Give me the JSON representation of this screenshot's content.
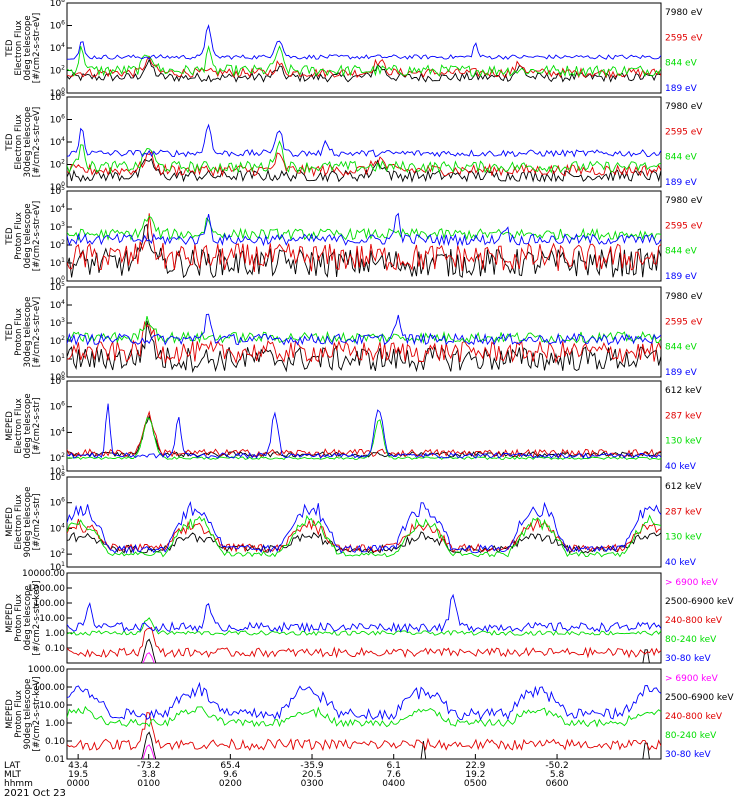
{
  "chart_data": [
    {
      "type": "line",
      "ylabel_lines": [
        "TED",
        "Electron Flux",
        "0deg telescope",
        "[#/cm2-s-str-eV]"
      ],
      "yscale": "log",
      "ylim_exp": [
        0,
        8
      ],
      "yticks": [
        {
          "exp": 0,
          "text": "10"
        },
        {
          "exp": 2,
          "text": "10"
        },
        {
          "exp": 4,
          "text": "10"
        },
        {
          "exp": 6,
          "text": "10"
        },
        {
          "exp": 8,
          "text": "10"
        }
      ],
      "series": [
        {
          "name": "7980 eV",
          "color": "#000000",
          "baseline": 1.4,
          "noise": 0.4,
          "spikes": [
            {
              "x": 1.1,
              "w": 0.09,
              "h": 1.2
            },
            {
              "x": 2.85,
              "w": 0.07,
              "h": 0.8
            },
            {
              "x": 4.2,
              "w": 0.1,
              "h": 1.0
            },
            {
              "x": 6.1,
              "w": 0.08,
              "h": 0.9
            }
          ]
        },
        {
          "name": "2595 eV",
          "color": "#e00000",
          "baseline": 1.8,
          "noise": 0.4,
          "spikes": [
            {
              "x": 1.1,
              "w": 0.09,
              "h": 1.1
            },
            {
              "x": 2.85,
              "w": 0.07,
              "h": 0.8
            },
            {
              "x": 4.2,
              "w": 0.1,
              "h": 1.0
            },
            {
              "x": 6.1,
              "w": 0.08,
              "h": 0.8
            }
          ]
        },
        {
          "name": "844 eV",
          "color": "#00dd00",
          "baseline": 2.0,
          "noise": 0.5,
          "spikes": [
            {
              "x": 0.2,
              "w": 0.05,
              "h": 2.0
            },
            {
              "x": 1.1,
              "w": 0.09,
              "h": 1.6
            },
            {
              "x": 1.9,
              "w": 0.04,
              "h": 2.2
            },
            {
              "x": 2.85,
              "w": 0.07,
              "h": 1.8
            }
          ]
        },
        {
          "name": "189 eV",
          "color": "#0000ff",
          "baseline": 3.2,
          "noise": 0.2,
          "spikes": [
            {
              "x": 0.2,
              "w": 0.04,
              "h": 1.4
            },
            {
              "x": 1.9,
              "w": 0.05,
              "h": 3.0
            },
            {
              "x": 2.85,
              "w": 0.07,
              "h": 1.6
            },
            {
              "x": 5.5,
              "w": 0.04,
              "h": 1.2
            }
          ]
        }
      ]
    },
    {
      "type": "line",
      "ylabel_lines": [
        "TED",
        "Electron Flux",
        "30deg telescope",
        "[#/cm2-s-str-eV]"
      ],
      "yscale": "log",
      "ylim_exp": [
        0,
        8
      ],
      "yticks": [
        {
          "exp": 0,
          "text": "10"
        },
        {
          "exp": 2,
          "text": "10"
        },
        {
          "exp": 4,
          "text": "10"
        },
        {
          "exp": 6,
          "text": "10"
        },
        {
          "exp": 8,
          "text": "10"
        }
      ],
      "series": [
        {
          "name": "7980 eV",
          "color": "#000000",
          "baseline": 1.0,
          "noise": 0.5,
          "spikes": [
            {
              "x": 1.1,
              "w": 0.09,
              "h": 1.5
            },
            {
              "x": 4.2,
              "w": 0.1,
              "h": 1.2
            }
          ]
        },
        {
          "name": "2595 eV",
          "color": "#e00000",
          "baseline": 1.5,
          "noise": 0.5,
          "spikes": [
            {
              "x": 1.1,
              "w": 0.09,
              "h": 1.4
            },
            {
              "x": 2.85,
              "w": 0.07,
              "h": 1.2
            },
            {
              "x": 4.2,
              "w": 0.1,
              "h": 1.0
            }
          ]
        },
        {
          "name": "844 eV",
          "color": "#00dd00",
          "baseline": 1.8,
          "noise": 0.5,
          "spikes": [
            {
              "x": 0.2,
              "w": 0.05,
              "h": 2.5
            },
            {
              "x": 1.1,
              "w": 0.08,
              "h": 1.8
            },
            {
              "x": 2.85,
              "w": 0.07,
              "h": 2.2
            }
          ]
        },
        {
          "name": "189 eV",
          "color": "#0000ff",
          "baseline": 3.0,
          "noise": 0.3,
          "spikes": [
            {
              "x": 0.2,
              "w": 0.04,
              "h": 2.5
            },
            {
              "x": 1.9,
              "w": 0.05,
              "h": 2.8
            },
            {
              "x": 2.85,
              "w": 0.07,
              "h": 2.0
            },
            {
              "x": 3.5,
              "w": 0.05,
              "h": 1.0
            }
          ]
        }
      ]
    },
    {
      "type": "line",
      "ylabel_lines": [
        "TED",
        "Proton Flux",
        "0deg telescope",
        "[#/cm2-s-str-eV]"
      ],
      "yscale": "log",
      "ylim_exp": [
        0,
        5
      ],
      "yticks": [
        {
          "exp": 0,
          "text": "10"
        },
        {
          "exp": 1,
          "text": "10"
        },
        {
          "exp": 2,
          "text": "10"
        },
        {
          "exp": 3,
          "text": "10"
        },
        {
          "exp": 4,
          "text": "10"
        },
        {
          "exp": 5,
          "text": "10"
        }
      ],
      "series": [
        {
          "name": "7980 eV",
          "color": "#000000",
          "baseline": 1.0,
          "noise": 0.8,
          "spikes": [
            {
              "x": 1.1,
              "w": 0.09,
              "h": 1.8
            }
          ]
        },
        {
          "name": "2595 eV",
          "color": "#e00000",
          "baseline": 1.3,
          "noise": 0.8,
          "spikes": [
            {
              "x": 1.1,
              "w": 0.09,
              "h": 1.7
            }
          ]
        },
        {
          "name": "844 eV",
          "color": "#00dd00",
          "baseline": 2.6,
          "noise": 0.3,
          "spikes": [
            {
              "x": 1.1,
              "w": 0.09,
              "h": 0.9
            },
            {
              "x": 1.9,
              "w": 0.05,
              "h": 0.9
            }
          ]
        },
        {
          "name": "189 eV",
          "color": "#0000ff",
          "baseline": 2.3,
          "noise": 0.3,
          "spikes": [
            {
              "x": 1.9,
              "w": 0.05,
              "h": 1.3
            },
            {
              "x": 4.45,
              "w": 0.05,
              "h": 1.4
            },
            {
              "x": 5.9,
              "w": 0.05,
              "h": 0.8
            }
          ]
        }
      ]
    },
    {
      "type": "line",
      "ylabel_lines": [
        "TED",
        "Proton Flux",
        "30deg telescope",
        "[#/cm2-s-str-eV]"
      ],
      "yscale": "log",
      "ylim_exp": [
        0,
        5
      ],
      "yticks": [
        {
          "exp": 0,
          "text": "10"
        },
        {
          "exp": 1,
          "text": "10"
        },
        {
          "exp": 2,
          "text": "10"
        },
        {
          "exp": 3,
          "text": "10"
        },
        {
          "exp": 4,
          "text": "10"
        },
        {
          "exp": 5,
          "text": "10"
        }
      ],
      "series": [
        {
          "name": "7980 eV",
          "color": "#000000",
          "baseline": 1.0,
          "noise": 0.7,
          "spikes": [
            {
              "x": 1.1,
              "w": 0.09,
              "h": 1.6
            }
          ]
        },
        {
          "name": "2595 eV",
          "color": "#e00000",
          "baseline": 1.4,
          "noise": 0.6,
          "spikes": [
            {
              "x": 1.1,
              "w": 0.09,
              "h": 1.5
            }
          ]
        },
        {
          "name": "844 eV",
          "color": "#00dd00",
          "baseline": 2.2,
          "noise": 0.3,
          "spikes": [
            {
              "x": 1.1,
              "w": 0.09,
              "h": 1.0
            }
          ]
        },
        {
          "name": "189 eV",
          "color": "#0000ff",
          "baseline": 2.1,
          "noise": 0.3,
          "spikes": [
            {
              "x": 1.9,
              "w": 0.05,
              "h": 1.6
            },
            {
              "x": 4.45,
              "w": 0.05,
              "h": 1.3
            }
          ]
        }
      ]
    },
    {
      "type": "line",
      "ylabel_lines": [
        "MEPED",
        "Electron Flux",
        "0deg telescope",
        "[#/cm2-s-str]"
      ],
      "yscale": "log",
      "ylim_exp": [
        1,
        8
      ],
      "yticks": [
        {
          "exp": 1,
          "text": "10"
        },
        {
          "exp": 2,
          "text": "10"
        },
        {
          "exp": 4,
          "text": "10"
        },
        {
          "exp": 6,
          "text": "10"
        },
        {
          "exp": 8,
          "text": "10"
        }
      ],
      "series": [
        {
          "name": "612 keV",
          "color": "#000000",
          "baseline": 2.3,
          "noise": 0.2,
          "spikes": [
            {
              "x": 1.1,
              "w": 0.1,
              "h": 2.8
            }
          ]
        },
        {
          "name": "287 keV",
          "color": "#e00000",
          "baseline": 2.4,
          "noise": 0.3,
          "spikes": [
            {
              "x": 1.1,
              "w": 0.1,
              "h": 3.0
            }
          ]
        },
        {
          "name": "130 keV",
          "color": "#00dd00",
          "baseline": 2.0,
          "noise": 0.1,
          "spikes": [
            {
              "x": 1.1,
              "w": 0.1,
              "h": 3.2
            },
            {
              "x": 4.2,
              "w": 0.08,
              "h": 3.0
            }
          ]
        },
        {
          "name": "40 keV",
          "color": "#0000ff",
          "baseline": 2.2,
          "noise": 0.2,
          "spikes": [
            {
              "x": 0.55,
              "w": 0.04,
              "h": 4.0
            },
            {
              "x": 1.5,
              "w": 0.05,
              "h": 3.0
            },
            {
              "x": 2.8,
              "w": 0.06,
              "h": 3.4
            },
            {
              "x": 4.2,
              "w": 0.08,
              "h": 3.6
            }
          ]
        }
      ]
    },
    {
      "type": "line",
      "ylabel_lines": [
        "MEPED",
        "Electron Flux",
        "90deg telescope",
        "[#/cm2-s-str]"
      ],
      "yscale": "log",
      "ylim_exp": [
        1,
        8
      ],
      "yticks": [
        {
          "exp": 1,
          "text": "10"
        },
        {
          "exp": 2,
          "text": "10"
        },
        {
          "exp": 4,
          "text": "10"
        },
        {
          "exp": 6,
          "text": "10"
        },
        {
          "exp": 8,
          "text": "10"
        }
      ],
      "series": [
        {
          "name": "612 keV",
          "color": "#000000",
          "baseline": 2.4,
          "noise": 0.3,
          "humps": 1.2
        },
        {
          "name": "287 keV",
          "color": "#e00000",
          "baseline": 2.5,
          "noise": 0.3,
          "humps": 2.0
        },
        {
          "name": "130 keV",
          "color": "#00dd00",
          "baseline": 2.0,
          "noise": 0.2,
          "humps": 3.0
        },
        {
          "name": "40 keV",
          "color": "#0000ff",
          "baseline": 2.4,
          "noise": 0.3,
          "humps": 3.8
        }
      ]
    },
    {
      "type": "line",
      "ylabel_lines": [
        "MEPED",
        "Proton Flux",
        "0deg telescope",
        "[#/cm2-s-str-keV]"
      ],
      "yscale": "log",
      "ylim_exp": [
        -2,
        4
      ],
      "yticks": [
        {
          "exp": -1,
          "text": "0.10"
        },
        {
          "exp": 0,
          "text": "1.00"
        },
        {
          "exp": 1,
          "text": "10.00"
        },
        {
          "exp": 2,
          "text": "100.00"
        },
        {
          "exp": 3,
          "text": "1000.00"
        },
        {
          "exp": 4,
          "text": "10000.00"
        }
      ],
      "series": [
        {
          "name": "> 6900 keV",
          "color": "#ff00ff",
          "baseline": -2.5,
          "noise": 0.0,
          "spikes": [
            {
              "x": 1.1,
              "w": 0.08,
              "h": 1.2
            }
          ]
        },
        {
          "name": "2500-6900 keV",
          "color": "#000000",
          "baseline": -2.5,
          "noise": 0.0,
          "spikes": [
            {
              "x": 1.1,
              "w": 0.08,
              "h": 2.1
            },
            {
              "x": 7.8,
              "w": 0.04,
              "h": 1.6
            }
          ]
        },
        {
          "name": "240-800 keV",
          "color": "#e00000",
          "baseline": -1.3,
          "noise": 0.3,
          "spikes": [
            {
              "x": 1.1,
              "w": 0.08,
              "h": 1.9
            }
          ]
        },
        {
          "name": "80-240 keV",
          "color": "#00dd00",
          "baseline": 0.0,
          "noise": 0.15,
          "spikes": [
            {
              "x": 1.1,
              "w": 0.08,
              "h": 1.0
            }
          ]
        },
        {
          "name": "30-80 keV",
          "color": "#0000ff",
          "baseline": 0.4,
          "noise": 0.3,
          "spikes": [
            {
              "x": 0.3,
              "w": 0.05,
              "h": 1.6
            },
            {
              "x": 1.9,
              "w": 0.06,
              "h": 1.4
            },
            {
              "x": 5.2,
              "w": 0.06,
              "h": 2.0
            }
          ]
        }
      ]
    },
    {
      "type": "line",
      "ylabel_lines": [
        "MEPED",
        "Proton Flux",
        "90deg telescope",
        "[#/cm2-s-str-keV]"
      ],
      "yscale": "log",
      "ylim_exp": [
        -2,
        3
      ],
      "yticks": [
        {
          "exp": -2,
          "text": "0.01"
        },
        {
          "exp": -1,
          "text": "0.10"
        },
        {
          "exp": 0,
          "text": "1.00"
        },
        {
          "exp": 1,
          "text": "10.00"
        },
        {
          "exp": 2,
          "text": "100.00"
        },
        {
          "exp": 3,
          "text": "1000.00"
        }
      ],
      "series": [
        {
          "name": "> 6900 keV",
          "color": "#ff00ff",
          "baseline": -2.5,
          "noise": 0.0,
          "spikes": [
            {
              "x": 1.1,
              "w": 0.08,
              "h": 1.3
            }
          ]
        },
        {
          "name": "2500-6900 keV",
          "color": "#000000",
          "baseline": -2.5,
          "noise": 0.0,
          "spikes": [
            {
              "x": 1.1,
              "w": 0.08,
              "h": 2.0
            },
            {
              "x": 4.8,
              "w": 0.03,
              "h": 1.5
            },
            {
              "x": 7.8,
              "w": 0.04,
              "h": 1.6
            }
          ]
        },
        {
          "name": "240-800 keV",
          "color": "#e00000",
          "baseline": -1.2,
          "noise": 0.3,
          "spikes": [
            {
              "x": 1.1,
              "w": 0.08,
              "h": 1.8
            }
          ]
        },
        {
          "name": "80-240 keV",
          "color": "#00dd00",
          "baseline": 0.0,
          "noise": 0.2,
          "humps": 0.8
        },
        {
          "name": "30-80 keV",
          "color": "#0000ff",
          "baseline": 0.5,
          "noise": 0.3,
          "humps": 1.6
        }
      ]
    }
  ],
  "x_axis": {
    "range": [
      0,
      8
    ],
    "row_labels": [
      "LAT",
      "MLT",
      "hhmm"
    ],
    "ticks": [
      {
        "x": 0.15,
        "lat": "43.4",
        "mlt": "19.5",
        "hhmm": "0000"
      },
      {
        "x": 1.1,
        "lat": "-73.2",
        "mlt": "3.8",
        "hhmm": "0100"
      },
      {
        "x": 2.2,
        "lat": "65.4",
        "mlt": "9.6",
        "hhmm": "0200"
      },
      {
        "x": 3.3,
        "lat": "-35.9",
        "mlt": "20.5",
        "hhmm": "0300"
      },
      {
        "x": 4.4,
        "lat": "6.1",
        "mlt": "7.6",
        "hhmm": "0400"
      },
      {
        "x": 5.5,
        "lat": "22.9",
        "mlt": "19.2",
        "hhmm": "0500"
      },
      {
        "x": 6.6,
        "lat": "-50.2",
        "mlt": "5.8",
        "hhmm": "0600"
      }
    ],
    "date": "2021 Oct 23"
  }
}
